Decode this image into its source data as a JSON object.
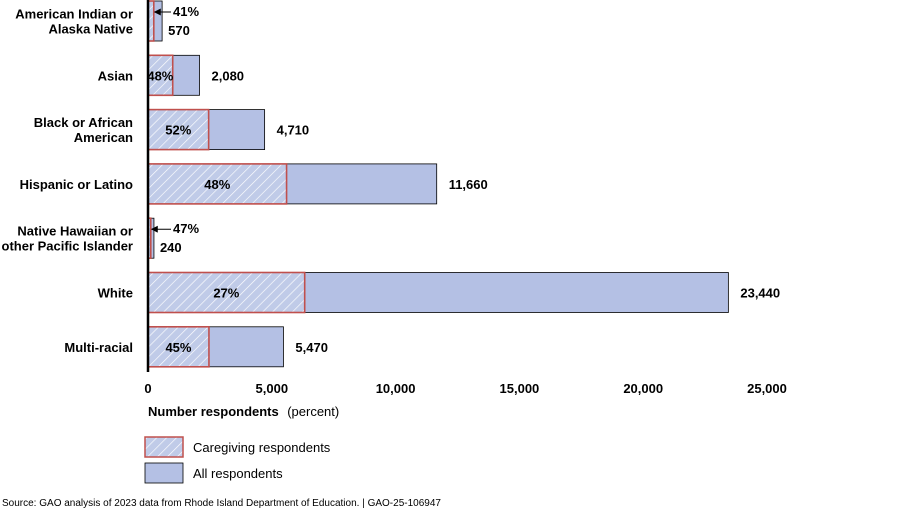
{
  "chart_data": {
    "type": "bar",
    "orientation": "horizontal",
    "stacking": "overlay",
    "categories": [
      [
        "American Indian or",
        "Alaska Native"
      ],
      [
        "Asian"
      ],
      [
        "Black or African",
        "American"
      ],
      [
        "Hispanic or Latino"
      ],
      [
        "Native Hawaiian or",
        "other Pacific Islander"
      ],
      [
        "White"
      ],
      [
        "Multi-racial"
      ]
    ],
    "series": [
      {
        "name": "All respondents",
        "values": [
          570,
          2080,
          4710,
          11660,
          240,
          23440,
          5470
        ],
        "labels": [
          "570",
          "2,080",
          "4,710",
          "11,660",
          "240",
          "23,440",
          "5,470"
        ],
        "color": "#b4c0e4"
      },
      {
        "name": "Caregiving respondents",
        "percents": [
          41,
          48,
          52,
          48,
          47,
          27,
          45
        ],
        "labels": [
          "41%",
          "48%",
          "52%",
          "48%",
          "47%",
          "27%",
          "45%"
        ],
        "color": "#c0cbe8",
        "border_color": "#c0504d",
        "pattern": "diagonal-hatch"
      }
    ],
    "xlabel_bold": "Number respondents",
    "xlabel_normal": "(percent)",
    "xlim": [
      0,
      25000
    ],
    "xticks": [
      0,
      5000,
      10000,
      15000,
      20000,
      25000
    ],
    "xtick_labels": [
      "0",
      "5,000",
      "10,000",
      "15,000",
      "20,000",
      "25,000"
    ],
    "legend": [
      "Caregiving respondents",
      "All respondents"
    ],
    "legend_position": "bottom-left",
    "grid": false
  },
  "source": "Source: GAO analysis of 2023 data from Rhode Island Department of Education.  |  GAO-25-106947"
}
